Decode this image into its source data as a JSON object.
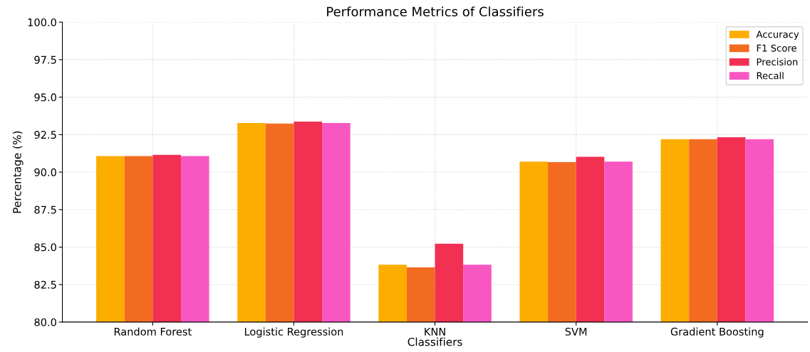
{
  "chart_data": {
    "type": "bar",
    "title": "Performance Metrics of Classifiers",
    "xlabel": "Classifiers",
    "ylabel": "Percentage (%)",
    "categories": [
      "Random Forest",
      "Logistic Regression",
      "KNN",
      "SVM",
      "Gradient Boosting"
    ],
    "series": [
      {
        "name": "Accuracy",
        "color": "#fdad00",
        "values": [
          91.07,
          93.28,
          83.82,
          90.7,
          92.2
        ]
      },
      {
        "name": "F1 Score",
        "color": "#f26b21",
        "values": [
          91.07,
          93.24,
          83.65,
          90.67,
          92.19
        ]
      },
      {
        "name": "Precision",
        "color": "#f23052",
        "values": [
          91.15,
          93.37,
          85.22,
          91.02,
          92.33
        ]
      },
      {
        "name": "Recall",
        "color": "#f857c2",
        "values": [
          91.07,
          93.28,
          83.82,
          90.7,
          92.2
        ]
      }
    ],
    "ylim": [
      80,
      100
    ],
    "yticks": [
      {
        "value": 80,
        "label": "80.0"
      },
      {
        "value": 82.5,
        "label": "82.5"
      },
      {
        "value": 85,
        "label": "85.0"
      },
      {
        "value": 87.5,
        "label": "87.5"
      },
      {
        "value": 90,
        "label": "90.0"
      },
      {
        "value": 92.5,
        "label": "92.5"
      },
      {
        "value": 95,
        "label": "95.0"
      },
      {
        "value": 97.5,
        "label": "97.5"
      },
      {
        "value": 100,
        "label": "100.0"
      }
    ],
    "grid": true,
    "legend": "top right"
  }
}
